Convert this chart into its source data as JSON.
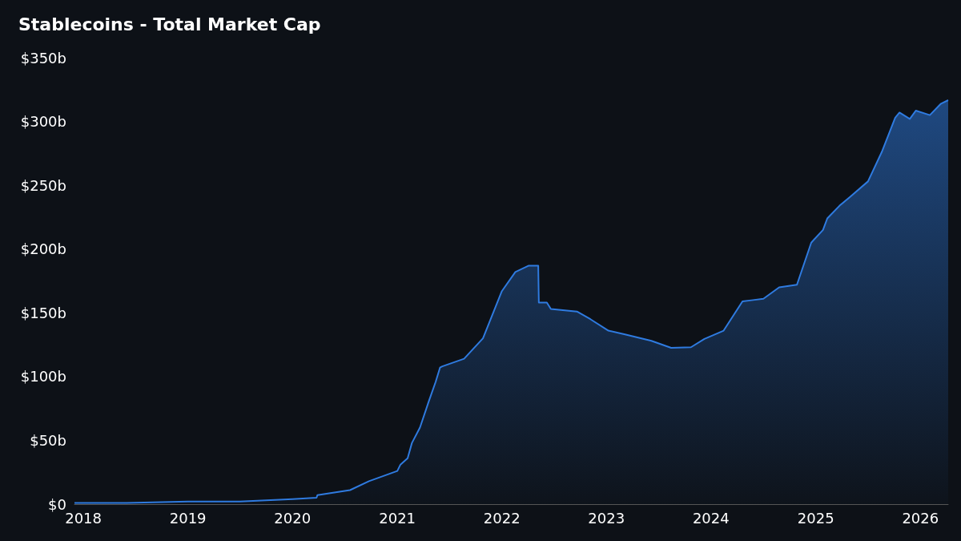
{
  "chart_data": {
    "type": "area",
    "title": "Stablecoins - Total Market Cap",
    "x": [
      "2017-12-01",
      "2018-06-01",
      "2019-01-01",
      "2019-07-01",
      "2020-01-01",
      "2020-03-25",
      "2020-03-28",
      "2020-07-20",
      "2020-09-24",
      "2021-01-01",
      "2021-01-12",
      "2021-02-06",
      "2021-02-21",
      "2021-03-21",
      "2021-04-20",
      "2021-05-15",
      "2021-05-30",
      "2021-06-07",
      "2021-08-22",
      "2021-10-27",
      "2022-01-01",
      "2022-02-17",
      "2022-04-05",
      "2022-05-08",
      "2022-05-10",
      "2022-06-07",
      "2022-06-21",
      "2022-09-20",
      "2022-11-06",
      "2023-01-08",
      "2023-03-07",
      "2023-06-07",
      "2023-08-15",
      "2023-10-23",
      "2023-12-09",
      "2024-02-14",
      "2024-04-20",
      "2024-05-27",
      "2024-07-02",
      "2024-08-26",
      "2024-10-27",
      "2024-12-16",
      "2025-01-26",
      "2025-02-10",
      "2025-03-25",
      "2025-05-01",
      "2025-07-02",
      "2025-08-19",
      "2025-10-05",
      "2025-10-20",
      "2025-11-25",
      "2025-12-16",
      "2026-02-03",
      "2026-03-14",
      "2026-04-08"
    ],
    "series": [
      {
        "color": "#2f7be0",
        "values": [
          1,
          1,
          2,
          2,
          4,
          5,
          7,
          11,
          18,
          26,
          31,
          36,
          48,
          60,
          80,
          96,
          107,
          108,
          114,
          130,
          167,
          182,
          187,
          187,
          158,
          158,
          153,
          151,
          145,
          136,
          133,
          128,
          122.5,
          123,
          129.5,
          136,
          159,
          160,
          161,
          170,
          172,
          205,
          215,
          224,
          234,
          241,
          253,
          276,
          303,
          307,
          302,
          308.5,
          305,
          314,
          316.7
        ]
      }
    ],
    "xlim": [
      "2017-12-01",
      "2026-04-08"
    ],
    "xticks": [
      "2018",
      "2019",
      "2020",
      "2021",
      "2022",
      "2023",
      "2024",
      "2025",
      "2026"
    ],
    "ylim": [
      0,
      350
    ],
    "yticks": [
      {
        "value": 0,
        "label": "$0"
      },
      {
        "value": 50,
        "label": "$50b"
      },
      {
        "value": 100,
        "label": "$100b"
      },
      {
        "value": 150,
        "label": "$150b"
      },
      {
        "value": 200,
        "label": "$200b"
      },
      {
        "value": 250,
        "label": "$250b"
      },
      {
        "value": 300,
        "label": "$300b"
      },
      {
        "value": 350,
        "label": "$350b"
      }
    ],
    "grid": false,
    "marker": "none",
    "line_style": "solid"
  }
}
